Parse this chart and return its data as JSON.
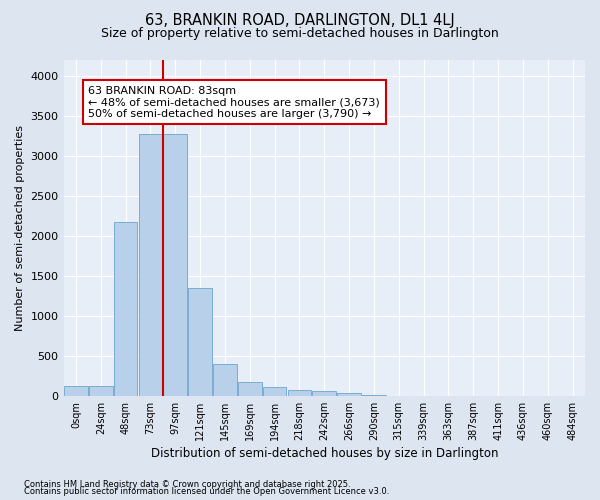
{
  "title": "63, BRANKIN ROAD, DARLINGTON, DL1 4LJ",
  "subtitle": "Size of property relative to semi-detached houses in Darlington",
  "xlabel": "Distribution of semi-detached houses by size in Darlington",
  "ylabel": "Number of semi-detached properties",
  "bar_labels": [
    "0sqm",
    "24sqm",
    "48sqm",
    "73sqm",
    "97sqm",
    "121sqm",
    "145sqm",
    "169sqm",
    "194sqm",
    "218sqm",
    "242sqm",
    "266sqm",
    "290sqm",
    "315sqm",
    "339sqm",
    "363sqm",
    "387sqm",
    "411sqm",
    "436sqm",
    "460sqm",
    "484sqm"
  ],
  "bar_values": [
    120,
    120,
    2175,
    3280,
    3280,
    1350,
    400,
    175,
    110,
    75,
    55,
    30,
    10,
    0,
    0,
    0,
    0,
    0,
    0,
    0,
    0
  ],
  "bar_color": "#b8d0ea",
  "bar_edge_color": "#7aadd4",
  "annotation_title": "63 BRANKIN ROAD: 83sqm",
  "annotation_line1": "← 48% of semi-detached houses are smaller (3,673)",
  "annotation_line2": "50% of semi-detached houses are larger (3,790) →",
  "vline_color": "#cc0000",
  "annotation_box_edgecolor": "#cc0000",
  "vline_x": 3.5,
  "ylim": [
    0,
    4200
  ],
  "yticks": [
    0,
    500,
    1000,
    1500,
    2000,
    2500,
    3000,
    3500,
    4000
  ],
  "footnote1": "Contains HM Land Registry data © Crown copyright and database right 2025.",
  "footnote2": "Contains public sector information licensed under the Open Government Licence v3.0.",
  "bg_color": "#dde5f0",
  "plot_bg_color": "#e8eef8",
  "grid_color": "#ffffff"
}
